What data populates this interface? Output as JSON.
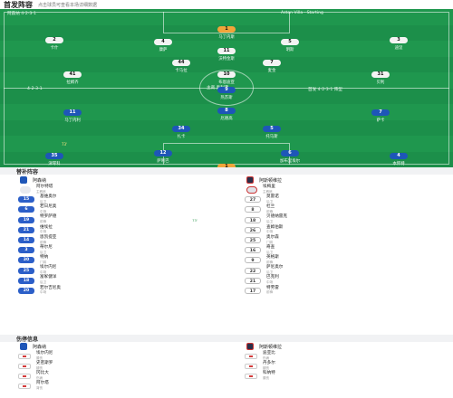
{
  "header": {
    "title": "首发阵容",
    "subtitle": "点击球员可查看本场详细数据"
  },
  "pitch": {
    "home_team_name": "阿森纳",
    "home_formation": "4-2-3-1",
    "away_team_name": "维拉",
    "away_formation": "4-2-3-1",
    "home_label_top": "阿森纳 4-2-3-1",
    "home_label_side": "首发 4-2-3-1",
    "away_label_top": "Aston Villa · Starting",
    "away_label_side": "首发 4-2-3-1 阵型",
    "center_text": "主裁 奥利弗"
  },
  "home_players": [
    {
      "num": "1",
      "name": "拉姆斯代尔",
      "pos": "gk",
      "event": ""
    },
    {
      "num": "4",
      "name": "本怀特",
      "pos": "home",
      "event": ""
    },
    {
      "num": "6",
      "name": "加布里埃尔",
      "pos": "home",
      "event": ""
    },
    {
      "num": "12",
      "name": "萨利巴",
      "pos": "home",
      "event": ""
    },
    {
      "num": "35",
      "name": "津琴科",
      "pos": "home",
      "event": "73'"
    },
    {
      "num": "5",
      "name": "托马斯",
      "pos": "home",
      "event": ""
    },
    {
      "num": "34",
      "name": "扎卡",
      "pos": "home",
      "event": ""
    },
    {
      "num": "7",
      "name": "萨卡",
      "pos": "home",
      "event": ""
    },
    {
      "num": "8",
      "name": "厄德高",
      "pos": "home",
      "event": ""
    },
    {
      "num": "11",
      "name": "马丁内利",
      "pos": "home",
      "event": ""
    },
    {
      "num": "9",
      "name": "热苏斯",
      "pos": "home",
      "event": ""
    }
  ],
  "away_players": [
    {
      "num": "1",
      "name": "马丁内斯",
      "pos": "gk",
      "event": ""
    },
    {
      "num": "2",
      "name": "卡什",
      "pos": "away",
      "event": ""
    },
    {
      "num": "4",
      "name": "康萨",
      "pos": "away",
      "event": ""
    },
    {
      "num": "5",
      "name": "明斯",
      "pos": "away",
      "event": ""
    },
    {
      "num": "3",
      "name": "迪涅",
      "pos": "away",
      "event": ""
    },
    {
      "num": "44",
      "name": "卡马拉",
      "pos": "away",
      "event": ""
    },
    {
      "num": "7",
      "name": "麦金",
      "pos": "away",
      "event": ""
    },
    {
      "num": "41",
      "name": "拉姆齐",
      "pos": "away",
      "event": ""
    },
    {
      "num": "10",
      "name": "布恩迪亚",
      "pos": "away",
      "event": ""
    },
    {
      "num": "31",
      "name": "贝利",
      "pos": "away",
      "event": ""
    },
    {
      "num": "11",
      "name": "沃特金斯",
      "pos": "away",
      "event": ""
    }
  ],
  "bench": {
    "title": "替补阵容",
    "home_team": "阿森纳",
    "away_team": "阿斯顿维拉",
    "home": [
      {
        "num": "",
        "name": "阿尔特塔",
        "sub": "主教练",
        "in": ""
      },
      {
        "num": "15",
        "name": "基维奥尔",
        "sub": "后卫",
        "in": ""
      },
      {
        "num": "6",
        "name": "若日尼奥",
        "sub": "中场",
        "in": ""
      },
      {
        "num": "19",
        "name": "特罗萨德",
        "sub": "前锋",
        "in": "73'"
      },
      {
        "num": "21",
        "name": "维埃拉",
        "sub": "中场",
        "in": ""
      },
      {
        "num": "14",
        "name": "恩凯提亚",
        "sub": "前锋",
        "in": ""
      },
      {
        "num": "3",
        "name": "蒂尔尼",
        "sub": "后卫",
        "in": ""
      },
      {
        "num": "30",
        "name": "特纳",
        "sub": "门将",
        "in": ""
      },
      {
        "num": "25",
        "name": "埃尔内尼",
        "sub": "中场",
        "in": ""
      },
      {
        "num": "18",
        "name": "富冢健洋",
        "sub": "后卫",
        "in": ""
      },
      {
        "num": "20",
        "name": "若尔吉尼奥",
        "sub": "中场",
        "in": ""
      }
    ],
    "away": [
      {
        "num": "",
        "name": "埃梅里",
        "sub": "主教练",
        "in": ""
      },
      {
        "num": "27",
        "name": "莫雷诺",
        "sub": "后卫",
        "in": ""
      },
      {
        "num": "8",
        "name": "杜兰",
        "sub": "前锋",
        "in": ""
      },
      {
        "num": "18",
        "name": "贝德纳雷克",
        "sub": "后卫",
        "in": ""
      },
      {
        "num": "26",
        "name": "查姆伯斯",
        "sub": "中场",
        "in": ""
      },
      {
        "num": "25",
        "name": "奥尔森",
        "sub": "门将",
        "in": ""
      },
      {
        "num": "16",
        "name": "奇查",
        "sub": "后卫",
        "in": ""
      },
      {
        "num": "9",
        "name": "英格斯",
        "sub": "前锋",
        "in": ""
      },
      {
        "num": "22",
        "name": "萨尼奥尔",
        "sub": "后卫",
        "in": ""
      },
      {
        "num": "21",
        "name": "巴克利",
        "sub": "中场",
        "in": ""
      },
      {
        "num": "17",
        "name": "特劳雷",
        "sub": "前锋",
        "in": ""
      }
    ]
  },
  "injury": {
    "title": "伤停信息",
    "home_team": "阿森纳",
    "away_team": "阿斯顿维拉",
    "home": [
      {
        "name": "埃尔内尼",
        "reason": "膝伤"
      },
      {
        "name": "史密斯罗",
        "reason": "腿伤"
      },
      {
        "name": "冈比大",
        "reason": "伤病"
      },
      {
        "name": "阿尔塔",
        "reason": "背伤"
      }
    ],
    "away": [
      {
        "name": "迪亚比",
        "reason": "伤病"
      },
      {
        "name": "丹多尔",
        "reason": "腿伤"
      },
      {
        "name": "科纳特",
        "reason": "膝伤"
      }
    ]
  }
}
